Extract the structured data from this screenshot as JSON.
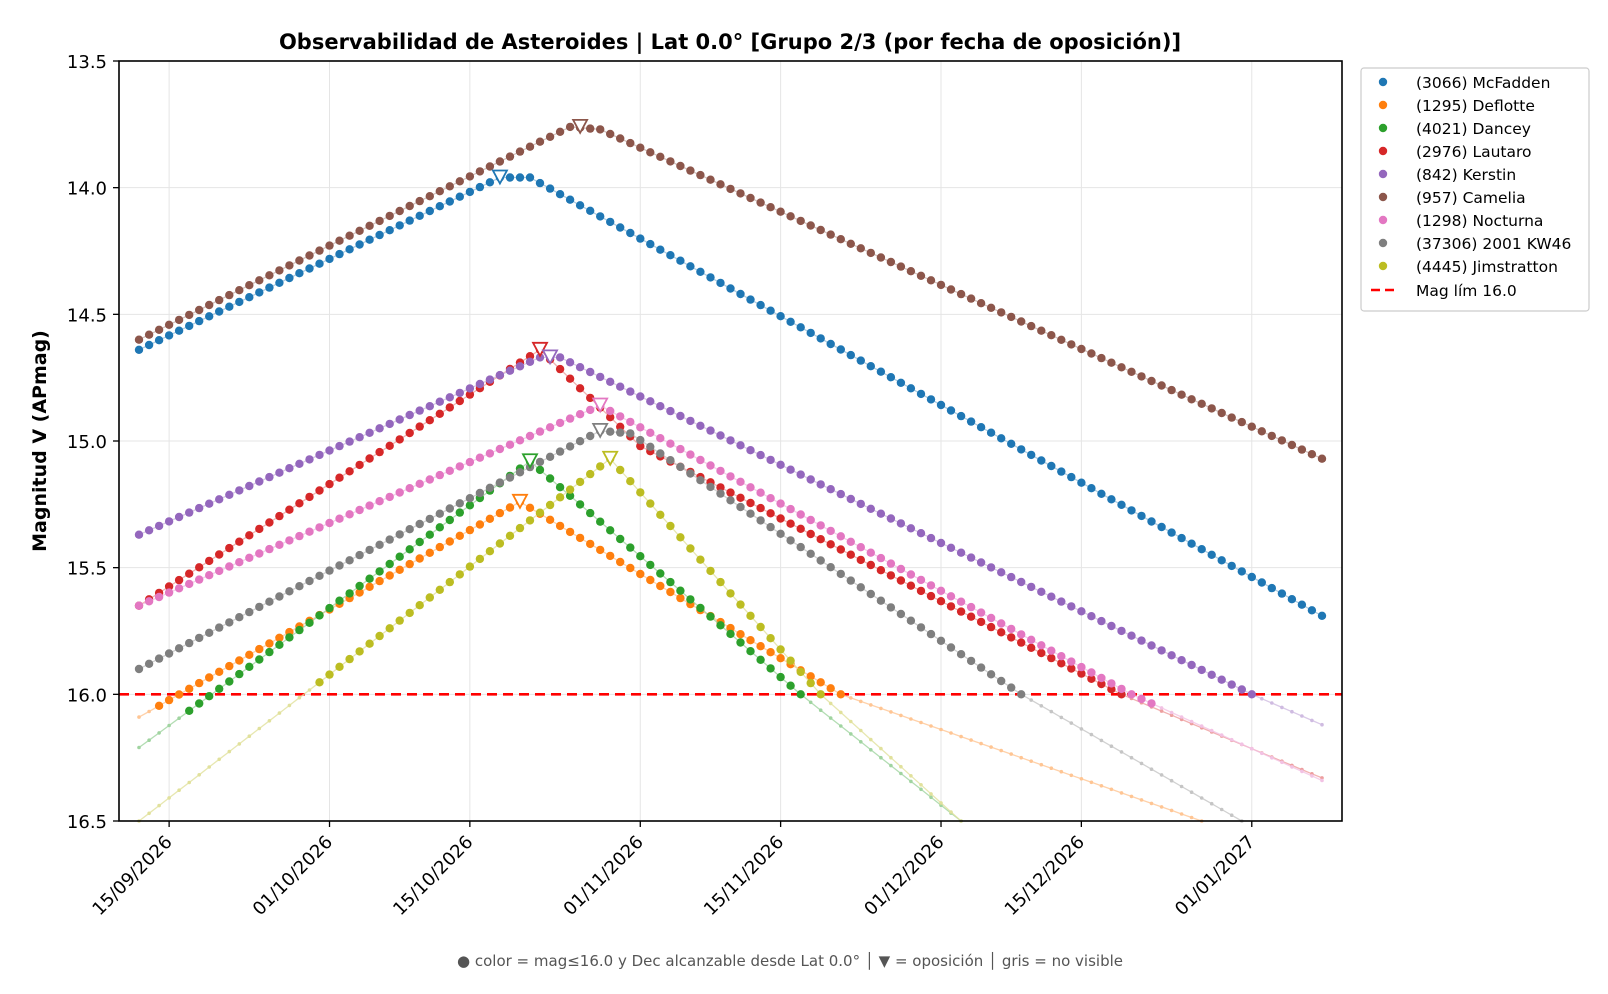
{
  "chart_data": {
    "type": "line",
    "title": "Observabilidad de Asteroides  |  Lat 0.0°  [Grupo 2/3 (por fecha de oposición)]",
    "ylabel": "Magnitud V (APmag)",
    "xlabel": "",
    "ylim": [
      16.5,
      13.5
    ],
    "y_inverted": true,
    "xlim": [
      "2026-09-10",
      "2027-01-10"
    ],
    "x_ticks": [
      "2026-09-15",
      "2026-10-01",
      "2026-10-15",
      "2026-11-01",
      "2026-11-15",
      "2026-12-01",
      "2026-12-15",
      "2027-01-01"
    ],
    "x_tick_labels": [
      "15/09/2026",
      "01/10/2026",
      "15/10/2026",
      "01/11/2026",
      "15/11/2026",
      "01/12/2026",
      "15/12/2026",
      "01/01/2027"
    ],
    "y_ticks": [
      13.5,
      14.0,
      14.5,
      15.0,
      15.5,
      16.0,
      16.5
    ],
    "y_tick_labels": [
      "13.5",
      "14.0",
      "14.5",
      "15.0",
      "15.5",
      "16.0",
      "16.5"
    ],
    "grid": true,
    "legend_position": "outside-top-right",
    "start_date": "2026-09-12",
    "end_date": "2027-01-08",
    "limit_line": {
      "label": "Mag lím 16.0",
      "value": 16.0,
      "color": "#ff0000",
      "style": "dashed"
    },
    "not_visible_color": "#bdbdbd",
    "series": [
      {
        "name": "(3066) McFadden",
        "color": "#1f77b4",
        "points": [
          [
            "2026-09-12",
            14.64
          ],
          [
            "2026-10-18",
            13.96
          ],
          [
            "2026-10-21",
            13.96
          ],
          [
            "2027-01-08",
            15.69
          ]
        ],
        "visible": [
          [
            "2026-09-12",
            "2027-01-08"
          ]
        ],
        "opposition": [
          "2026-10-18",
          13.96
        ]
      },
      {
        "name": "(1295) Deflotte",
        "color": "#ff7f0e",
        "points": [
          [
            "2026-09-12",
            16.09
          ],
          [
            "2026-10-20",
            15.24
          ],
          [
            "2026-11-21",
            16.0
          ],
          [
            "2026-12-27",
            16.5
          ]
        ],
        "visible": [
          [
            "2026-09-14",
            "2026-11-21"
          ]
        ],
        "opposition": [
          "2026-10-20",
          15.24
        ]
      },
      {
        "name": "(4021) Dancey",
        "color": "#2ca02c",
        "points": [
          [
            "2026-09-12",
            16.21
          ],
          [
            "2026-10-21",
            15.08
          ],
          [
            "2026-11-17",
            16.0
          ],
          [
            "2026-12-03",
            16.5
          ]
        ],
        "visible": [
          [
            "2026-09-17",
            "2026-11-17"
          ]
        ],
        "opposition": [
          "2026-10-21",
          15.08
        ]
      },
      {
        "name": "(2976) Lautaro",
        "color": "#d62728",
        "points": [
          [
            "2026-09-12",
            15.65
          ],
          [
            "2026-10-22",
            14.64
          ],
          [
            "2026-11-01",
            15.02
          ],
          [
            "2026-12-19",
            16.0
          ],
          [
            "2027-01-08",
            16.33
          ]
        ],
        "visible": [
          [
            "2026-09-12",
            "2026-12-19"
          ]
        ],
        "opposition": [
          "2026-10-22",
          14.64
        ]
      },
      {
        "name": "(842) Kerstin",
        "color": "#9467bd",
        "points": [
          [
            "2026-09-12",
            15.37
          ],
          [
            "2026-10-22",
            14.67
          ],
          [
            "2026-10-24",
            14.67
          ],
          [
            "2027-01-01",
            16.0
          ],
          [
            "2027-01-08",
            16.12
          ]
        ],
        "visible": [
          [
            "2026-09-12",
            "2027-01-01"
          ]
        ],
        "opposition": [
          "2026-10-23",
          14.67
        ]
      },
      {
        "name": "(957) Camelia",
        "color": "#8c564b",
        "points": [
          [
            "2026-09-12",
            14.6
          ],
          [
            "2026-10-25",
            13.76
          ],
          [
            "2026-10-28",
            13.77
          ],
          [
            "2027-01-08",
            15.07
          ]
        ],
        "visible": [
          [
            "2026-09-12",
            "2027-01-08"
          ]
        ],
        "opposition": [
          "2026-10-26",
          13.76
        ]
      },
      {
        "name": "(1298) Nocturna",
        "color": "#e377c2",
        "points": [
          [
            "2026-09-12",
            15.65
          ],
          [
            "2026-10-28",
            14.86
          ],
          [
            "2026-12-20",
            16.0
          ],
          [
            "2027-01-08",
            16.34
          ]
        ],
        "visible": [
          [
            "2026-09-12",
            "2026-12-22"
          ]
        ],
        "opposition": [
          "2026-10-28",
          14.86
        ]
      },
      {
        "name": "(37306) 2001 KW46",
        "color": "#7f7f7f",
        "points": [
          [
            "2026-09-12",
            15.9
          ],
          [
            "2026-10-28",
            14.96
          ],
          [
            "2026-10-31",
            14.97
          ],
          [
            "2026-12-09",
            16.0
          ],
          [
            "2026-12-31",
            16.5
          ]
        ],
        "visible": [
          [
            "2026-09-12",
            "2026-12-09"
          ]
        ],
        "opposition": [
          "2026-10-28",
          14.96
        ]
      },
      {
        "name": "(4445) Jimstratton",
        "color": "#bcbd22",
        "points": [
          [
            "2026-09-12",
            16.5
          ],
          [
            "2026-10-29",
            15.07
          ],
          [
            "2026-11-19",
            16.0
          ],
          [
            "2026-12-03",
            16.5
          ]
        ],
        "visible": [
          [
            "2026-09-30",
            "2026-11-19"
          ]
        ],
        "opposition": [
          "2026-10-29",
          15.07
        ]
      }
    ]
  },
  "footnote": "● color = mag≤16.0 y Dec alcanzable desde Lat 0.0°  │  ▼ = oposición  │  gris = no visible"
}
